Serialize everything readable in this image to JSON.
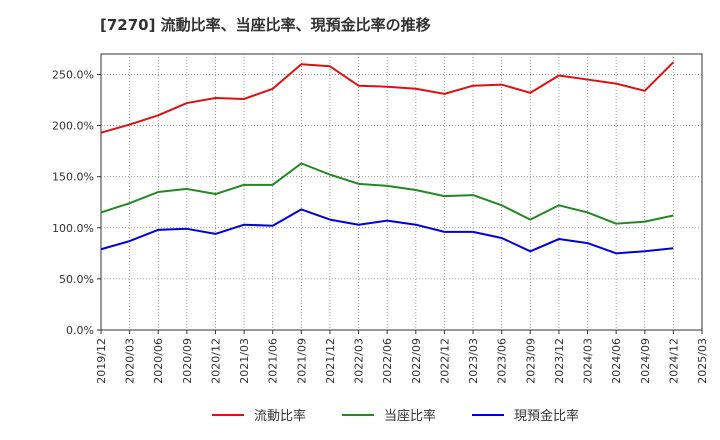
{
  "chart_data": {
    "type": "line",
    "title": "[7270]  流動比率、当座比率、現預金比率の推移",
    "xlabel": "",
    "ylabel": "",
    "ylim": [
      0,
      270
    ],
    "yticks": [
      0,
      50,
      100,
      150,
      200,
      250
    ],
    "ytick_labels": [
      "0.0%",
      "50.0%",
      "100.0%",
      "150.0%",
      "200.0%",
      "250.0%"
    ],
    "categories": [
      "2019/12",
      "2020/03",
      "2020/06",
      "2020/09",
      "2020/12",
      "2021/03",
      "2021/06",
      "2021/09",
      "2021/12",
      "2022/03",
      "2022/06",
      "2022/09",
      "2022/12",
      "2023/03",
      "2023/06",
      "2023/09",
      "2023/12",
      "2024/03",
      "2024/06",
      "2024/09",
      "2024/12",
      "2025/03"
    ],
    "grid": true,
    "legend_position": "bottom",
    "series": [
      {
        "name": "流動比率",
        "color": "#dd1111",
        "values": [
          193,
          201,
          210,
          222,
          227,
          226,
          236,
          260,
          258,
          239,
          238,
          236,
          231,
          239,
          240,
          232,
          249,
          245,
          241,
          234,
          262,
          null
        ]
      },
      {
        "name": "当座比率",
        "color": "#228822",
        "values": [
          115,
          124,
          135,
          138,
          133,
          142,
          142,
          163,
          152,
          143,
          141,
          137,
          131,
          132,
          122,
          108,
          122,
          115,
          104,
          106,
          112,
          null
        ]
      },
      {
        "name": "現預金比率",
        "color": "#0000dd",
        "values": [
          79,
          87,
          98,
          99,
          94,
          103,
          102,
          118,
          108,
          103,
          107,
          103,
          96,
          96,
          90,
          77,
          89,
          85,
          75,
          77,
          80,
          null
        ]
      }
    ]
  }
}
